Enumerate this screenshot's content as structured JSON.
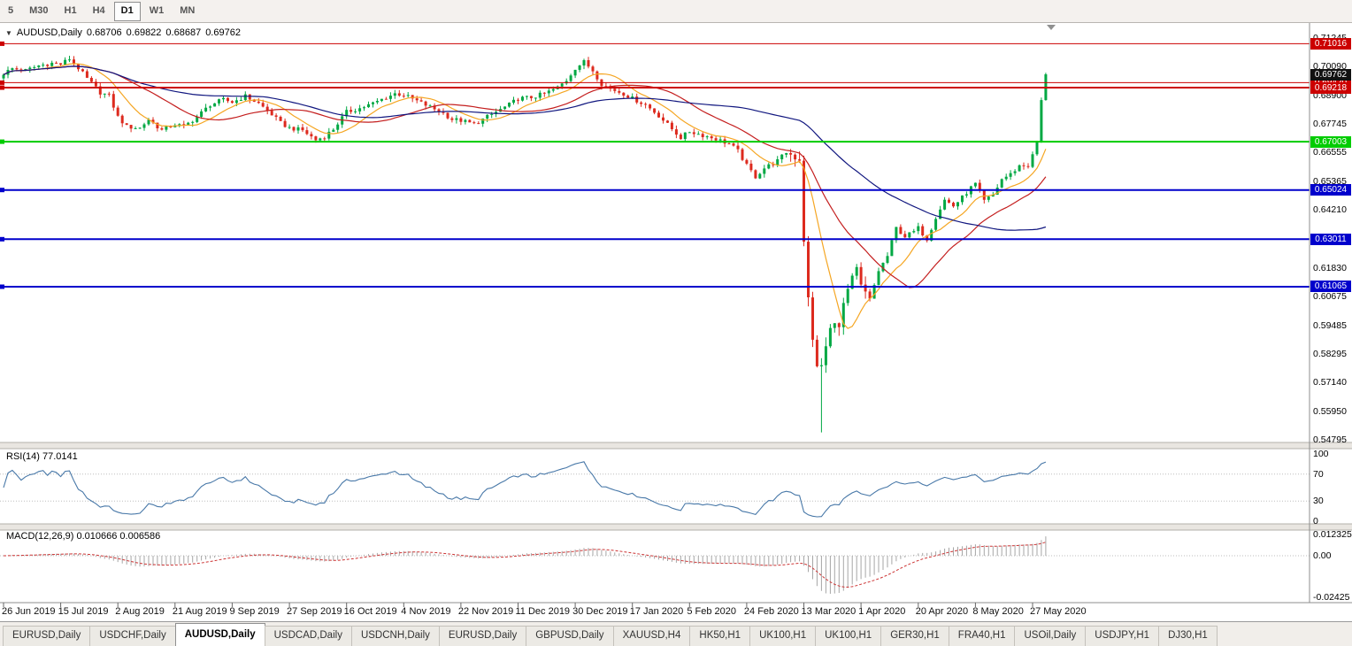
{
  "toolbar": {
    "timeframes": [
      "5",
      "M30",
      "H1",
      "H4",
      "D1",
      "W1",
      "MN"
    ],
    "active": "D1"
  },
  "chart": {
    "symbol_label": "AUDUSD,Daily",
    "dropdown_icon": "▼",
    "ohlc": {
      "open": "0.68706",
      "high": "0.69822",
      "low": "0.68687",
      "close": "0.69762"
    },
    "price_axis_ticks": [
      "0.71245",
      "0.70090",
      "0.68900",
      "0.67745",
      "0.66555",
      "0.65365",
      "0.64210",
      "0.63020",
      "0.61830",
      "0.60675",
      "0.59485",
      "0.58295",
      "0.57140",
      "0.55950",
      "0.54795"
    ],
    "hlines": [
      {
        "price": 0.71016,
        "label": "0.71016",
        "color": "#cc0000",
        "width": 1
      },
      {
        "price": 0.6942,
        "label": "0.69420",
        "color": "#cc0000",
        "width": 1
      },
      {
        "price": 0.69218,
        "label": "0.69218",
        "color": "#cc0000",
        "width": 2
      },
      {
        "price": 0.67003,
        "label": "0.67003",
        "color": "#00cc00",
        "width": 2
      },
      {
        "price": 0.65024,
        "label": "0.65024",
        "color": "#0000cc",
        "width": 2
      },
      {
        "price": 0.63011,
        "label": "0.63011",
        "color": "#0000cc",
        "width": 2
      },
      {
        "price": 0.61065,
        "label": "0.61065",
        "color": "#0000cc",
        "width": 2
      }
    ],
    "current_price": {
      "value": 0.69762,
      "label": "0.69762",
      "badge_color": "#111111"
    }
  },
  "chart_data": {
    "type": "candlestick",
    "symbol": "AUDUSD",
    "timeframe": "Daily",
    "title": "AUDUSD,Daily",
    "ylim": [
      0.5469,
      0.7179
    ],
    "bar_count": 238,
    "x_first_date": "26 Jun 2019",
    "x_last_date": "5 Jun 2020",
    "up_color": "#00a843",
    "down_color": "#dd2a1e",
    "last_candle": {
      "open": 0.68706,
      "high": 0.69822,
      "low": 0.68687,
      "close": 0.69762
    },
    "crash": {
      "day": 186,
      "wick_low": 0.551
    },
    "close_path_anchors": [
      [
        0,
        0.698
      ],
      [
        2,
        0.7
      ],
      [
        5,
        0.6992
      ],
      [
        8,
        0.7012
      ],
      [
        11,
        0.7022
      ],
      [
        13,
        0.7018
      ],
      [
        15,
        0.704
      ],
      [
        17,
        0.7002
      ],
      [
        19,
        0.6958
      ],
      [
        22,
        0.6902
      ],
      [
        24,
        0.6888
      ],
      [
        26,
        0.6802
      ],
      [
        28,
        0.6762
      ],
      [
        31,
        0.6756
      ],
      [
        33,
        0.6792
      ],
      [
        36,
        0.6747
      ],
      [
        39,
        0.6772
      ],
      [
        41,
        0.6762
      ],
      [
        44,
        0.6802
      ],
      [
        47,
        0.6852
      ],
      [
        50,
        0.6872
      ],
      [
        52,
        0.6862
      ],
      [
        55,
        0.6887
      ],
      [
        58,
        0.6857
      ],
      [
        61,
        0.6812
      ],
      [
        63,
        0.6777
      ],
      [
        65,
        0.6757
      ],
      [
        68,
        0.6747
      ],
      [
        71,
        0.6707
      ],
      [
        73,
        0.6722
      ],
      [
        75,
        0.6752
      ],
      [
        78,
        0.6822
      ],
      [
        81,
        0.6837
      ],
      [
        84,
        0.6857
      ],
      [
        87,
        0.6882
      ],
      [
        89,
        0.6897
      ],
      [
        91,
        0.6892
      ],
      [
        94,
        0.6867
      ],
      [
        97,
        0.6842
      ],
      [
        100,
        0.6817
      ],
      [
        102,
        0.6792
      ],
      [
        104,
        0.6787
      ],
      [
        107,
        0.6772
      ],
      [
        110,
        0.6802
      ],
      [
        113,
        0.6832
      ],
      [
        115,
        0.6852
      ],
      [
        117,
        0.6877
      ],
      [
        120,
        0.6882
      ],
      [
        123,
        0.6897
      ],
      [
        126,
        0.6922
      ],
      [
        128,
        0.6952
      ],
      [
        130,
        0.7002
      ],
      [
        132,
        0.7027
      ],
      [
        134,
        0.6992
      ],
      [
        136,
        0.6937
      ],
      [
        138,
        0.6917
      ],
      [
        141,
        0.6897
      ],
      [
        143,
        0.6877
      ],
      [
        146,
        0.6852
      ],
      [
        149,
        0.6807
      ],
      [
        152,
        0.6752
      ],
      [
        154,
        0.6717
      ],
      [
        156,
        0.6742
      ],
      [
        159,
        0.6727
      ],
      [
        162,
        0.6712
      ],
      [
        165,
        0.6692
      ],
      [
        167,
        0.6662
      ],
      [
        169,
        0.6602
      ],
      [
        171,
        0.6557
      ],
      [
        173,
        0.6592
      ],
      [
        176,
        0.6622
      ],
      [
        178,
        0.6657
      ],
      [
        181,
        0.6632
      ],
      [
        182,
        0.6302
      ],
      [
        183,
        0.6052
      ],
      [
        184,
        0.5882
      ],
      [
        185,
        0.5792
      ],
      [
        186,
        0.5772
      ],
      [
        187,
        0.5862
      ],
      [
        188,
        0.5932
      ],
      [
        190,
        0.5962
      ],
      [
        192,
        0.6092
      ],
      [
        194,
        0.6172
      ],
      [
        195,
        0.6102
      ],
      [
        197,
        0.6052
      ],
      [
        199,
        0.6172
      ],
      [
        201,
        0.6232
      ],
      [
        203,
        0.6347
      ],
      [
        205,
        0.6312
      ],
      [
        207,
        0.6332
      ],
      [
        208,
        0.6347
      ],
      [
        210,
        0.6302
      ],
      [
        212,
        0.6392
      ],
      [
        214,
        0.6462
      ],
      [
        216,
        0.6437
      ],
      [
        218,
        0.6472
      ],
      [
        220,
        0.6512
      ],
      [
        221,
        0.6527
      ],
      [
        223,
        0.6457
      ],
      [
        225,
        0.6482
      ],
      [
        227,
        0.6547
      ],
      [
        229,
        0.6567
      ],
      [
        231,
        0.6602
      ],
      [
        233,
        0.6602
      ],
      [
        234,
        0.6647
      ],
      [
        235,
        0.6702
      ],
      [
        236,
        0.68706
      ],
      [
        237,
        0.69762
      ]
    ],
    "overlays": [
      {
        "name": "ma-fast",
        "type": "sma",
        "period": 10,
        "color": "#f5a623"
      },
      {
        "name": "ma-mid",
        "type": "sma",
        "period": 25,
        "color": "#c41e1e"
      },
      {
        "name": "ma-slow",
        "type": "sma",
        "period": 60,
        "color": "#10167f"
      }
    ],
    "indicators": [
      {
        "name": "RSI",
        "period": 14,
        "current": 77.0141,
        "pane": 1
      },
      {
        "name": "MACD",
        "fast": 12,
        "slow": 26,
        "signal": 9,
        "current_main": 0.010666,
        "current_signal": 0.006586,
        "pane": 2
      }
    ]
  },
  "rsi": {
    "label": "RSI(14) 77.0141",
    "period": 14,
    "current": 77.0141,
    "levels": [
      "100",
      "70",
      "30",
      "0"
    ],
    "level_values": [
      100,
      70,
      30,
      0
    ],
    "line_color": "#4878a8"
  },
  "macd": {
    "label": "MACD(12,26,9) 0.010666 0.006586",
    "params": "12,26,9",
    "main": 0.010666,
    "signal": 0.006586,
    "levels": [
      "0.012325",
      "0.00",
      "-0.02425"
    ],
    "level_values": [
      0.012325,
      0,
      -0.02425
    ],
    "histogram_color": "#a6a6a6",
    "signal_color": "#cc3333"
  },
  "date_axis": {
    "label_day_step": 13,
    "labels": [
      "26 Jun 2019",
      "15 Jul 2019",
      "2 Aug 2019",
      "21 Aug 2019",
      "9 Sep 2019",
      "27 Sep 2019",
      "16 Oct 2019",
      "4 Nov 2019",
      "22 Nov 2019",
      "11 Dec 2019",
      "30 Dec 2019",
      "17 Jan 2020",
      "5 Feb 2020",
      "24 Feb 2020",
      "13 Mar 2020",
      "1 Apr 2020",
      "20 Apr 2020",
      "8 May 2020",
      "27 May 2020"
    ]
  },
  "tabs": {
    "items": [
      "EURUSD,Daily",
      "USDCHF,Daily",
      "AUDUSD,Daily",
      "USDCAD,Daily",
      "USDCNH,Daily",
      "EURUSD,Daily",
      "GBPUSD,Daily",
      "XAUUSD,H4",
      "HK50,H1",
      "UK100,H1",
      "UK100,H1",
      "GER30,H1",
      "FRA40,H1",
      "USOil,Daily",
      "USDJPY,H1",
      "DJ30,H1"
    ],
    "active_index": 2
  }
}
